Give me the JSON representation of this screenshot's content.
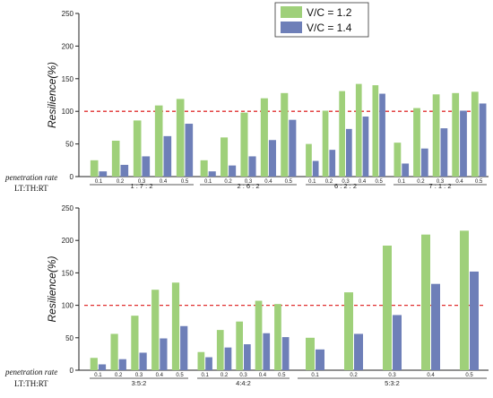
{
  "colors": {
    "series1": "#9fd07a",
    "series2": "#6e7fb8",
    "threshold": "#e03030"
  },
  "legend": [
    "V/C = 1.2",
    "V/C = 1.4"
  ],
  "row_labels": {
    "penetration": "penetration rate",
    "ratio": "LT:TH:RT"
  },
  "chart_data": [
    {
      "type": "bar",
      "ylabel": "Resilience(%)",
      "ylim": [
        0,
        250
      ],
      "yticks": [
        0,
        50,
        100,
        150,
        200,
        250
      ],
      "threshold": 100,
      "sub_categories": [
        "0.1",
        "0.2",
        "0.3",
        "0.4",
        "0.5"
      ],
      "groups": [
        "1 : 7 : 2",
        "2 : 6 : 2",
        "6 : 2 : 2",
        "7 : 1 : 2"
      ],
      "series": [
        {
          "name": "V/C = 1.2",
          "values": [
            [
              25,
              55,
              86,
              109,
              119
            ],
            [
              25,
              60,
              98,
              120,
              128
            ],
            [
              50,
              101,
              131,
              142,
              140
            ],
            [
              52,
              105,
              126,
              128,
              130
            ]
          ]
        },
        {
          "name": "V/C = 1.4",
          "values": [
            [
              8,
              18,
              31,
              62,
              81
            ],
            [
              8,
              17,
              31,
              56,
              87
            ],
            [
              24,
              41,
              73,
              92,
              127
            ],
            [
              20,
              43,
              74,
              101,
              112
            ]
          ]
        }
      ]
    },
    {
      "type": "bar",
      "ylabel": "Resilience(%)",
      "ylim": [
        0,
        250
      ],
      "yticks": [
        0,
        50,
        100,
        150,
        200,
        250
      ],
      "threshold": 100,
      "sub_categories": [
        "0.1",
        "0.2",
        "0.3",
        "0.4",
        "0.5"
      ],
      "groups": [
        "3:5:2",
        "4:4:2",
        "5:3:2"
      ],
      "series": [
        {
          "name": "V/C = 1.2",
          "values": [
            [
              19,
              56,
              84,
              124,
              135
            ],
            [
              28,
              62,
              75,
              107,
              102
            ],
            [
              50,
              120,
              192,
              209,
              215
            ]
          ]
        },
        {
          "name": "V/C = 1.4",
          "values": [
            [
              9,
              17,
              27,
              49,
              68
            ],
            [
              20,
              35,
              40,
              57,
              51
            ],
            [
              32,
              56,
              85,
              133,
              152
            ]
          ]
        }
      ]
    }
  ]
}
